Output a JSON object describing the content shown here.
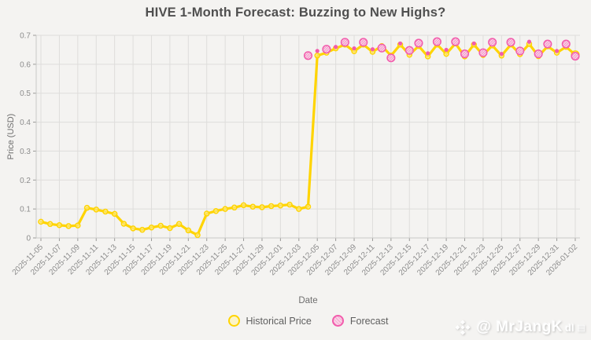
{
  "title": "HIVE 1-Month Forecast: Buzzing to New Highs?",
  "legend": {
    "historical_label": "Historical Price",
    "forecast_label": "Forecast"
  },
  "watermark": {
    "logo_icon": "binance-diamond",
    "handle": "@ MrJangK",
    "suffix": "dl",
    "badge": "▤"
  },
  "colors": {
    "background": "#f4f3f1",
    "grid": "#dedddb",
    "spine": "#c9c9c7",
    "tick_mark": "#9a9a98",
    "historical": "#ffd400",
    "historical_marker_fill": "#fdf3c0",
    "forecast": "#f25cac",
    "forecast_hatch": "#f48fc4",
    "forecast_marker_fill": "#fad2e6",
    "title_text": "#4f4f4f",
    "tick_text": "#8c8c8c",
    "axis_label_text": "#6e6e6e",
    "legend_text": "#5e5e5e"
  },
  "chart_data": {
    "type": "line",
    "title": "HIVE 1-Month Forecast: Buzzing to New Highs?",
    "xlabel": "Date",
    "ylabel": "Price (USD)",
    "ylim": [
      0,
      0.7
    ],
    "yticks": [
      0,
      0.1,
      0.2,
      0.3,
      0.4,
      0.5,
      0.6,
      0.7
    ],
    "grid": true,
    "legend_position": "bottom",
    "x_tick_labels": [
      "2025-11-05",
      "2025-11-07",
      "2025-11-09",
      "2025-11-11",
      "2025-11-13",
      "2025-11-15",
      "2025-11-17",
      "2025-11-19",
      "2025-11-21",
      "2025-11-23",
      "2025-11-25",
      "2025-11-27",
      "2025-11-29",
      "2025-12-01",
      "2025-12-03",
      "2025-12-05",
      "2025-12-07",
      "2025-12-09",
      "2025-12-11",
      "2025-12-13",
      "2025-12-15",
      "2025-12-17",
      "2025-12-19",
      "2025-12-21",
      "2025-12-23",
      "2025-12-25",
      "2025-12-27",
      "2025-12-29",
      "2025-12-31",
      "2026-01-02"
    ],
    "dates": [
      "2025-11-05",
      "2025-11-06",
      "2025-11-07",
      "2025-11-08",
      "2025-11-09",
      "2025-11-10",
      "2025-11-11",
      "2025-11-12",
      "2025-11-13",
      "2025-11-14",
      "2025-11-15",
      "2025-11-16",
      "2025-11-17",
      "2025-11-18",
      "2025-11-19",
      "2025-11-20",
      "2025-11-21",
      "2025-11-22",
      "2025-11-23",
      "2025-11-24",
      "2025-11-25",
      "2025-11-26",
      "2025-11-27",
      "2025-11-28",
      "2025-11-29",
      "2025-11-30",
      "2025-12-01",
      "2025-12-02",
      "2025-12-03",
      "2025-12-04",
      "2025-12-05",
      "2025-12-06",
      "2025-12-07",
      "2025-12-08",
      "2025-12-09",
      "2025-12-10",
      "2025-12-11",
      "2025-12-12",
      "2025-12-13",
      "2025-12-14",
      "2025-12-15",
      "2025-12-16",
      "2025-12-17",
      "2025-12-18",
      "2025-12-19",
      "2025-12-20",
      "2025-12-21",
      "2025-12-22",
      "2025-12-23",
      "2025-12-24",
      "2025-12-25",
      "2025-12-26",
      "2025-12-27",
      "2025-12-28",
      "2025-12-29",
      "2025-12-30",
      "2025-12-31",
      "2026-01-01",
      "2026-01-02"
    ],
    "series": [
      {
        "name": "Historical Price",
        "style": "line-with-markers",
        "values": [
          0.056,
          0.048,
          0.044,
          0.041,
          0.043,
          0.104,
          0.098,
          0.091,
          0.083,
          0.049,
          0.033,
          0.028,
          0.036,
          0.042,
          0.034,
          0.048,
          0.026,
          0.01,
          0.084,
          0.093,
          0.1,
          0.105,
          0.113,
          0.108,
          0.106,
          0.11,
          0.112,
          0.115,
          0.1,
          0.108,
          0.63,
          0.64,
          0.655,
          0.668,
          0.645,
          0.668,
          0.643,
          0.663,
          0.63,
          0.668,
          0.633,
          0.663,
          0.627,
          0.668,
          0.636,
          0.672,
          0.627,
          0.668,
          0.632,
          0.665,
          0.63,
          0.668,
          0.635,
          0.67,
          0.628,
          0.662,
          0.64,
          0.66,
          0.633
        ]
      },
      {
        "name": "Forecast",
        "style": "scatter",
        "points": [
          {
            "date": "2025-12-04",
            "value": 0.63,
            "size": "large"
          },
          {
            "date": "2025-12-05",
            "value": 0.646,
            "size": "small"
          },
          {
            "date": "2025-12-06",
            "value": 0.652,
            "size": "large"
          },
          {
            "date": "2025-12-07",
            "value": 0.66,
            "size": "small"
          },
          {
            "date": "2025-12-08",
            "value": 0.676,
            "size": "large"
          },
          {
            "date": "2025-12-09",
            "value": 0.655,
            "size": "small"
          },
          {
            "date": "2025-12-10",
            "value": 0.676,
            "size": "large"
          },
          {
            "date": "2025-12-11",
            "value": 0.652,
            "size": "small"
          },
          {
            "date": "2025-12-12",
            "value": 0.656,
            "size": "large"
          },
          {
            "date": "2025-12-13",
            "value": 0.622,
            "size": "large"
          },
          {
            "date": "2025-12-14",
            "value": 0.672,
            "size": "small"
          },
          {
            "date": "2025-12-15",
            "value": 0.648,
            "size": "large"
          },
          {
            "date": "2025-12-16",
            "value": 0.673,
            "size": "large"
          },
          {
            "date": "2025-12-17",
            "value": 0.638,
            "size": "small"
          },
          {
            "date": "2025-12-18",
            "value": 0.678,
            "size": "large"
          },
          {
            "date": "2025-12-19",
            "value": 0.65,
            "size": "small"
          },
          {
            "date": "2025-12-20",
            "value": 0.678,
            "size": "large"
          },
          {
            "date": "2025-12-21",
            "value": 0.636,
            "size": "large"
          },
          {
            "date": "2025-12-22",
            "value": 0.672,
            "size": "small"
          },
          {
            "date": "2025-12-23",
            "value": 0.64,
            "size": "large"
          },
          {
            "date": "2025-12-24",
            "value": 0.676,
            "size": "large"
          },
          {
            "date": "2025-12-25",
            "value": 0.636,
            "size": "small"
          },
          {
            "date": "2025-12-26",
            "value": 0.676,
            "size": "large"
          },
          {
            "date": "2025-12-27",
            "value": 0.646,
            "size": "large"
          },
          {
            "date": "2025-12-28",
            "value": 0.678,
            "size": "small"
          },
          {
            "date": "2025-12-29",
            "value": 0.636,
            "size": "large"
          },
          {
            "date": "2025-12-30",
            "value": 0.67,
            "size": "large"
          },
          {
            "date": "2025-12-31",
            "value": 0.646,
            "size": "small"
          },
          {
            "date": "2026-01-01",
            "value": 0.67,
            "size": "large"
          },
          {
            "date": "2026-01-02",
            "value": 0.628,
            "size": "large"
          }
        ]
      }
    ]
  }
}
